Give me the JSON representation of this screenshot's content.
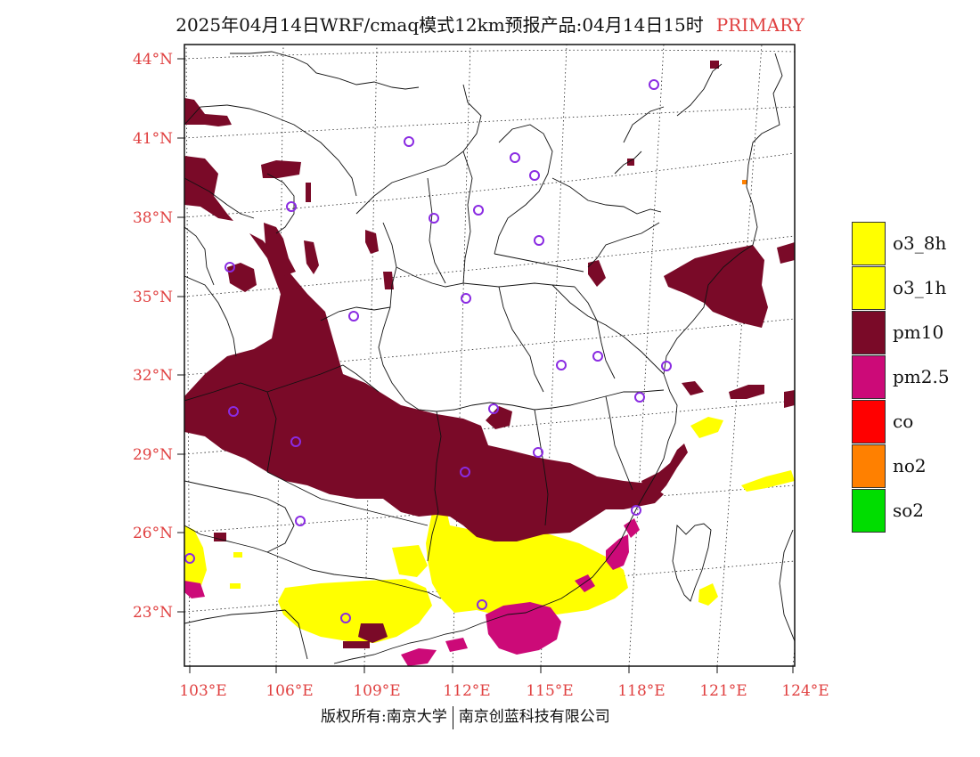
{
  "title": {
    "text": "2025年04月14日WRF/cmaq模式12km预报产品:04月14日15时",
    "tag": "PRIMARY"
  },
  "axes": {
    "lat_labels": [
      "44°N",
      "41°N",
      "38°N",
      "35°N",
      "32°N",
      "29°N",
      "26°N",
      "23°N"
    ],
    "lon_labels": [
      "103°E",
      "106°E",
      "109°E",
      "112°E",
      "115°E",
      "118°E",
      "121°E",
      "124°E"
    ],
    "label_color": "#e04040"
  },
  "legend": [
    {
      "label": "o3_8h",
      "color": "#ffff00"
    },
    {
      "label": "o3_1h",
      "color": "#ffff00"
    },
    {
      "label": "pm10",
      "color": "#7a0a28"
    },
    {
      "label": "pm2.5",
      "color": "#cc0a78"
    },
    {
      "label": "co",
      "color": "#ff0000"
    },
    {
      "label": "no2",
      "color": "#ff8000"
    },
    {
      "label": "so2",
      "color": "#00dd00"
    }
  ],
  "copyright": {
    "left": "版权所有:南京大学",
    "right": "南京创蓝科技有限公司"
  },
  "colors": {
    "pm10": "#7a0a28",
    "pm25": "#cc0a78",
    "o3": "#ffff00",
    "station": "#8a2be2"
  }
}
